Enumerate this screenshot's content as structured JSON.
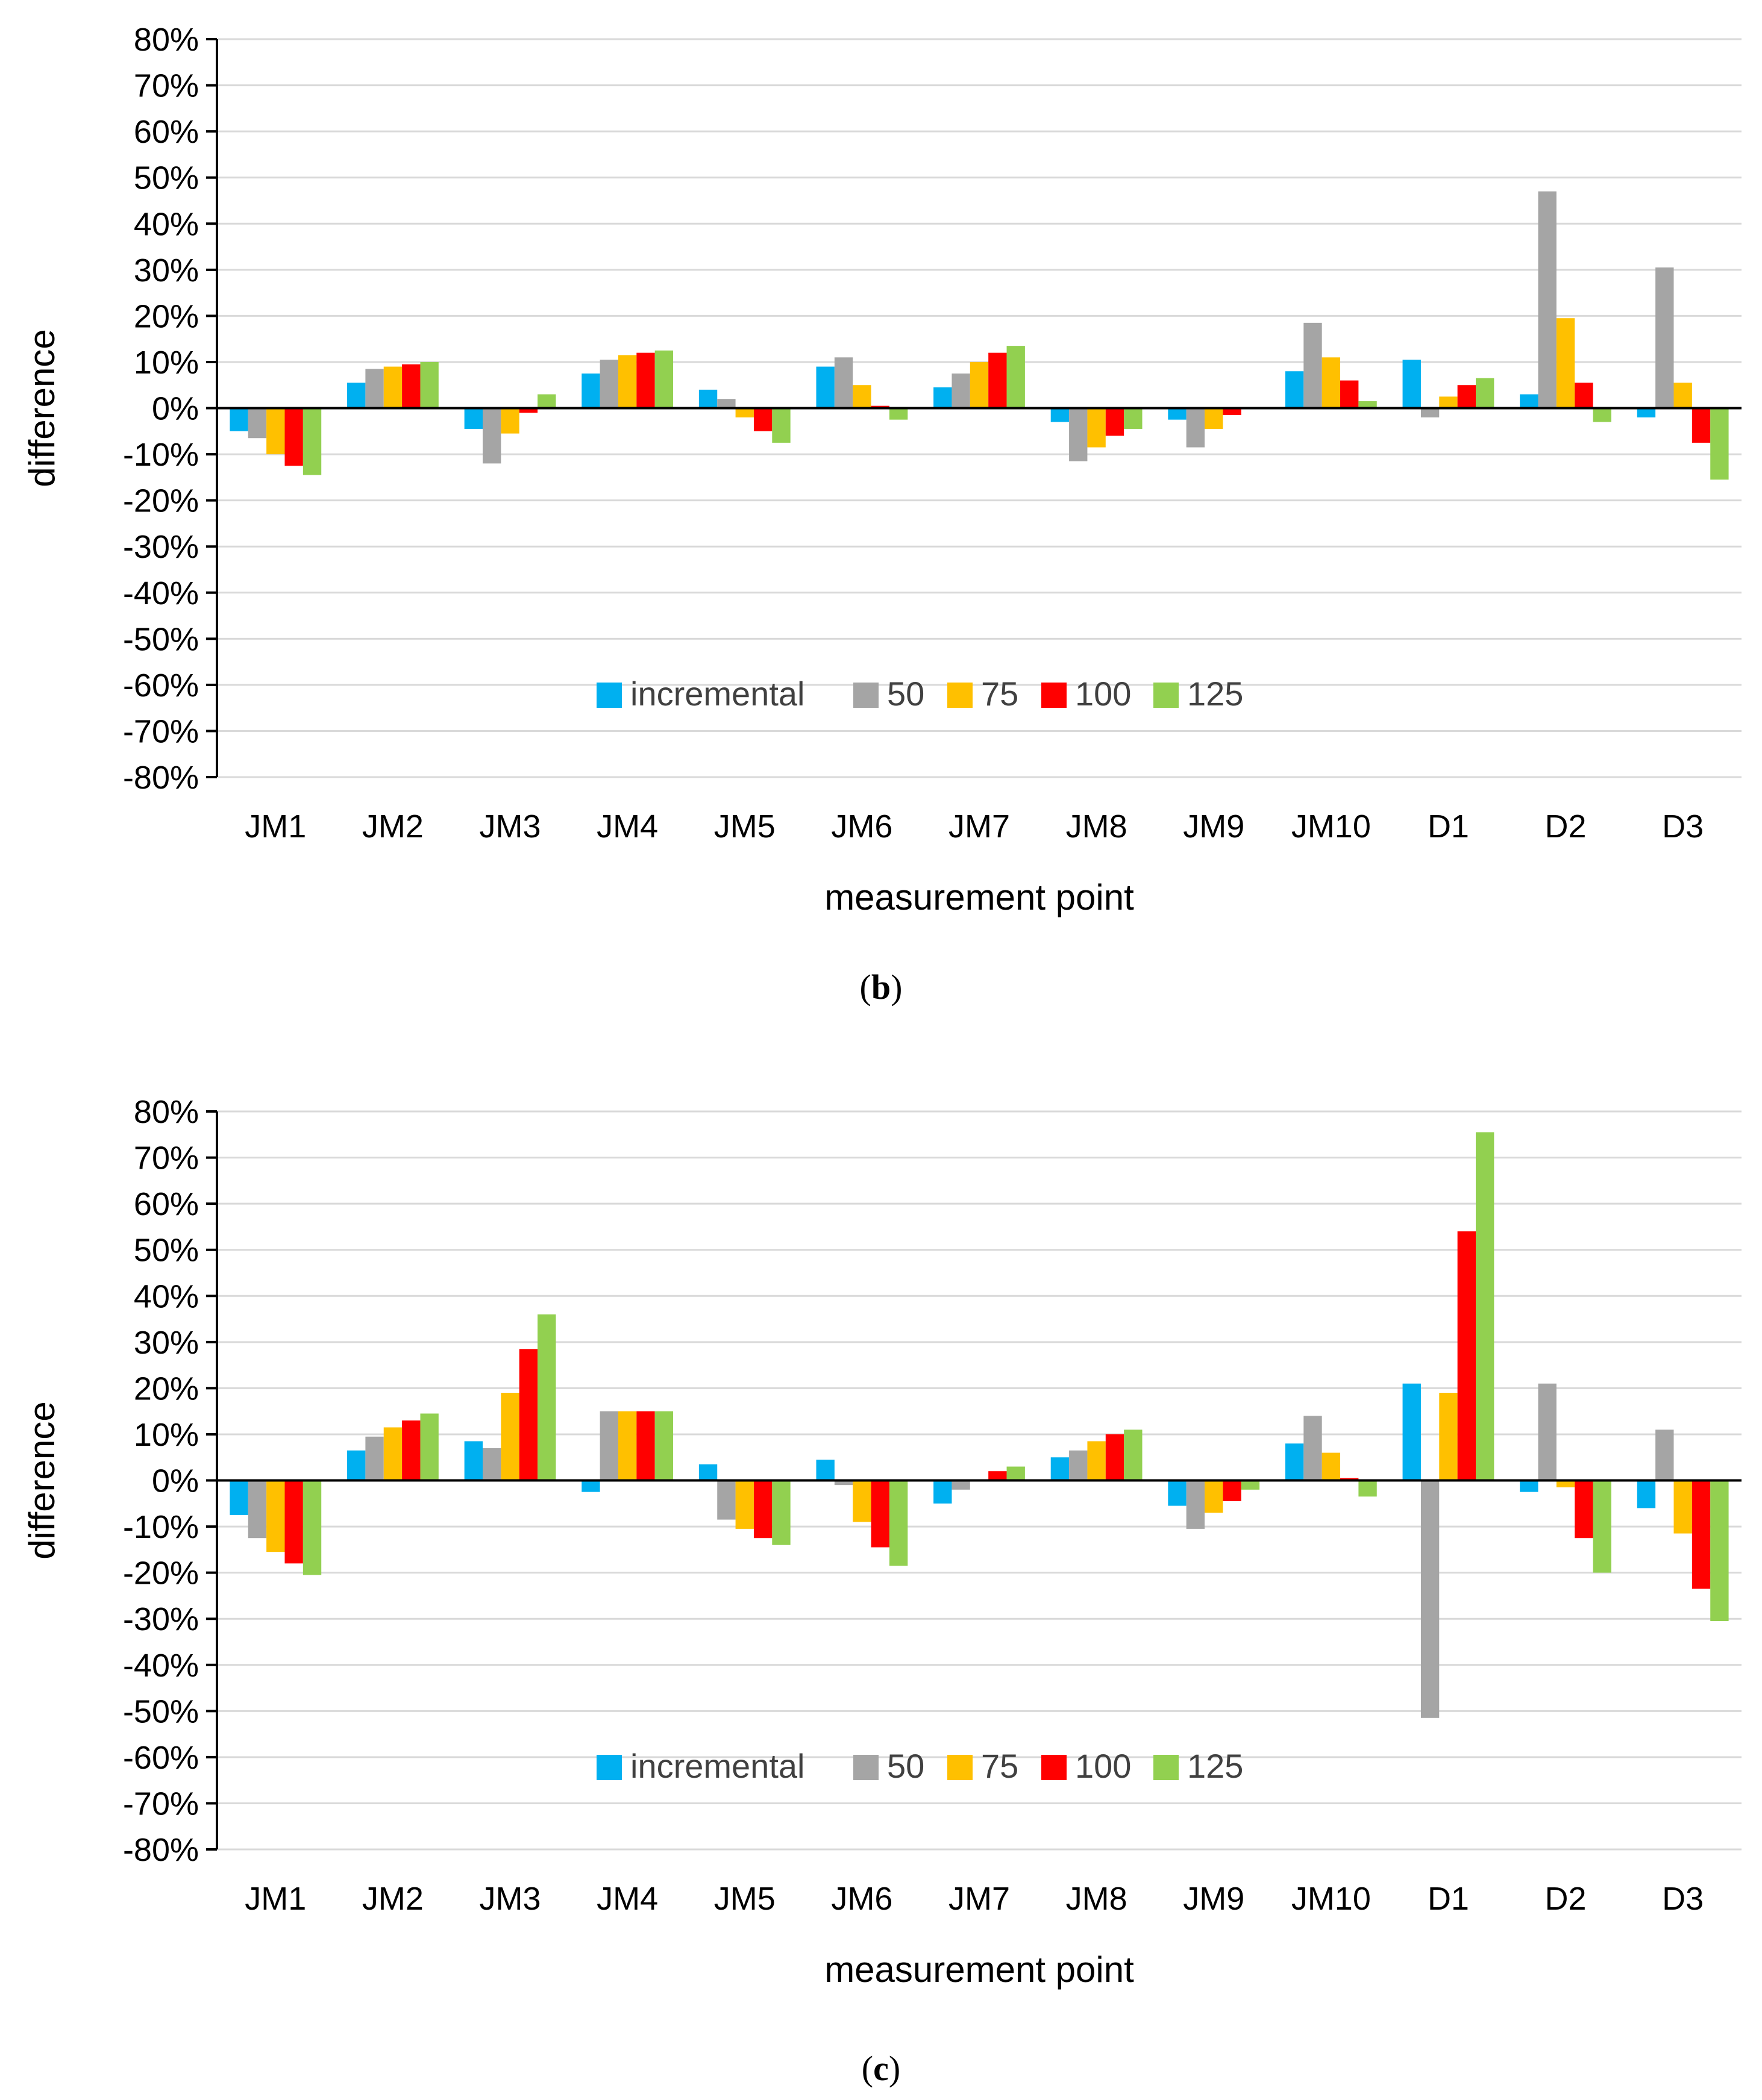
{
  "chart_data": [
    {
      "id": "b",
      "type": "bar",
      "panel_label": "b",
      "xlabel": "measurement point",
      "ylabel": "difference",
      "ylim": [
        -80,
        80
      ],
      "y_step": 10,
      "y_tick_labels": [
        "80%",
        "70%",
        "60%",
        "50%",
        "40%",
        "30%",
        "20%",
        "10%",
        "0%",
        "-10%",
        "-20%",
        "-30%",
        "-40%",
        "-50%",
        "-60%",
        "-70%",
        "-80%"
      ],
      "grid": true,
      "legend_position": "bottom-center inside",
      "categories": [
        "JM1",
        "JM2",
        "JM3",
        "JM4",
        "JM5",
        "JM6",
        "JM7",
        "JM8",
        "JM9",
        "JM10",
        "D1",
        "D2",
        "D3"
      ],
      "series": [
        {
          "name": "incremental",
          "color": "#00B0F0",
          "values": [
            -5,
            5.5,
            -4.5,
            7.5,
            4,
            9,
            4.5,
            -3,
            -2.5,
            8,
            10.5,
            3,
            -2
          ]
        },
        {
          "name": "50",
          "color": "#A5A5A5",
          "values": [
            -6.5,
            8.5,
            -12,
            10.5,
            2,
            11,
            7.5,
            -11.5,
            -8.5,
            18.5,
            -2,
            47,
            30.5
          ]
        },
        {
          "name": "75",
          "color": "#FFC000",
          "values": [
            -10,
            9,
            -5.5,
            11.5,
            -2,
            5,
            10,
            -8.5,
            -4.5,
            11,
            2.5,
            19.5,
            5.5
          ]
        },
        {
          "name": "100",
          "color": "#FF0000",
          "values": [
            -12.5,
            9.5,
            -1,
            12,
            -5,
            0.5,
            12,
            -6,
            -1.5,
            6,
            5,
            5.5,
            -7.5
          ]
        },
        {
          "name": "125",
          "color": "#92D050",
          "values": [
            -14.5,
            10,
            3,
            12.5,
            -7.5,
            -2.5,
            13.5,
            -4.5,
            0,
            1.5,
            6.5,
            -3,
            -15.5
          ]
        }
      ]
    },
    {
      "id": "c",
      "type": "bar",
      "panel_label": "c",
      "xlabel": "measurement point",
      "ylabel": "difference",
      "ylim": [
        -80,
        80
      ],
      "y_step": 10,
      "y_tick_labels": [
        "80%",
        "70%",
        "60%",
        "50%",
        "40%",
        "30%",
        "20%",
        "10%",
        "0%",
        "-10%",
        "-20%",
        "-30%",
        "-40%",
        "-50%",
        "-60%",
        "-70%",
        "-80%"
      ],
      "grid": true,
      "legend_position": "bottom-center inside",
      "categories": [
        "JM1",
        "JM2",
        "JM3",
        "JM4",
        "JM5",
        "JM6",
        "JM7",
        "JM8",
        "JM9",
        "JM10",
        "D1",
        "D2",
        "D3"
      ],
      "series": [
        {
          "name": "incremental",
          "color": "#00B0F0",
          "values": [
            -7.5,
            6.5,
            8.5,
            -2.5,
            3.5,
            4.5,
            -5,
            5,
            -5.5,
            8,
            21,
            -2.5,
            -6
          ]
        },
        {
          "name": "50",
          "color": "#A5A5A5",
          "values": [
            -12.5,
            9.5,
            7,
            15,
            -8.5,
            -1,
            -2,
            6.5,
            -10.5,
            14,
            -51.5,
            21,
            11
          ]
        },
        {
          "name": "75",
          "color": "#FFC000",
          "values": [
            -15.5,
            11.5,
            19,
            15,
            -10.5,
            -9,
            0,
            8.5,
            -7,
            6,
            19,
            -1.5,
            -11.5
          ]
        },
        {
          "name": "100",
          "color": "#FF0000",
          "values": [
            -18,
            13,
            28.5,
            15,
            -12.5,
            -14.5,
            2,
            10,
            -4.5,
            0.5,
            54,
            -12.5,
            -23.5
          ]
        },
        {
          "name": "125",
          "color": "#92D050",
          "values": [
            -20.5,
            14.5,
            36,
            15,
            -14,
            -18.5,
            3,
            11,
            -2,
            -3.5,
            75.5,
            -20,
            -30.5
          ]
        }
      ]
    }
  ]
}
